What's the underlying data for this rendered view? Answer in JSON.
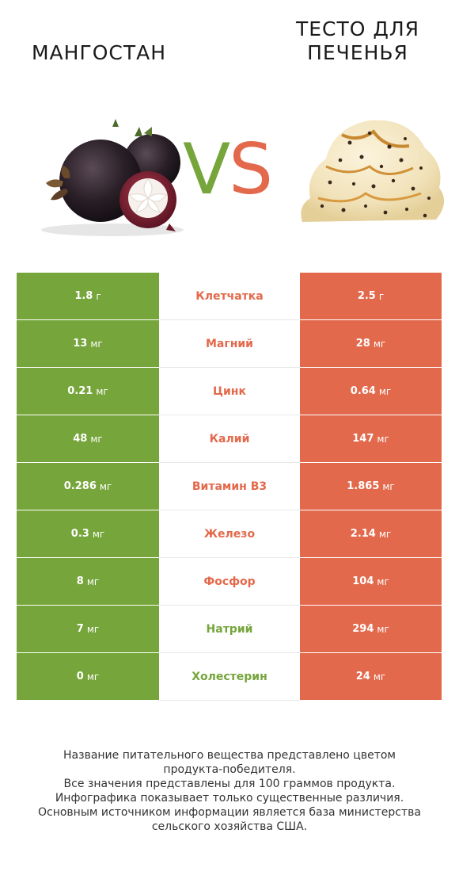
{
  "header": {
    "left_title": "МАНГОСТАН",
    "right_title_line1": "ТЕСТО ДЛЯ",
    "right_title_line2": "ПЕЧЕНЬЯ",
    "vs_v": "V",
    "vs_s": "S"
  },
  "colors": {
    "left_product": "#76a53b",
    "right_product": "#e3694c"
  },
  "images": {
    "left": "mangosteen-image",
    "right": "cookie-dough-ice-cream-image"
  },
  "rows": [
    {
      "name": "Клетчатка",
      "left_value": "1.8",
      "left_unit": "г",
      "right_value": "2.5",
      "right_unit": "г",
      "winner": "right"
    },
    {
      "name": "Магний",
      "left_value": "13",
      "left_unit": "мг",
      "right_value": "28",
      "right_unit": "мг",
      "winner": "right"
    },
    {
      "name": "Цинк",
      "left_value": "0.21",
      "left_unit": "мг",
      "right_value": "0.64",
      "right_unit": "мг",
      "winner": "right"
    },
    {
      "name": "Калий",
      "left_value": "48",
      "left_unit": "мг",
      "right_value": "147",
      "right_unit": "мг",
      "winner": "right"
    },
    {
      "name": "Витамин B3",
      "left_value": "0.286",
      "left_unit": "мг",
      "right_value": "1.865",
      "right_unit": "мг",
      "winner": "right"
    },
    {
      "name": "Железо",
      "left_value": "0.3",
      "left_unit": "мг",
      "right_value": "2.14",
      "right_unit": "мг",
      "winner": "right"
    },
    {
      "name": "Фосфор",
      "left_value": "8",
      "left_unit": "мг",
      "right_value": "104",
      "right_unit": "мг",
      "winner": "right"
    },
    {
      "name": "Натрий",
      "left_value": "7",
      "left_unit": "мг",
      "right_value": "294",
      "right_unit": "мг",
      "winner": "left"
    },
    {
      "name": "Холестерин",
      "left_value": "0",
      "left_unit": "мг",
      "right_value": "24",
      "right_unit": "мг",
      "winner": "left"
    }
  ],
  "footer": {
    "line1": "Название питательного вещества представлено цветом",
    "line2": "продукта-победителя.",
    "line3": "Все значения представлены для 100 граммов продукта.",
    "line4": "Инфографика показывает только существенные различия.",
    "line5": "Основным источником информации является база министерства",
    "line6": "сельского хозяйства США."
  }
}
